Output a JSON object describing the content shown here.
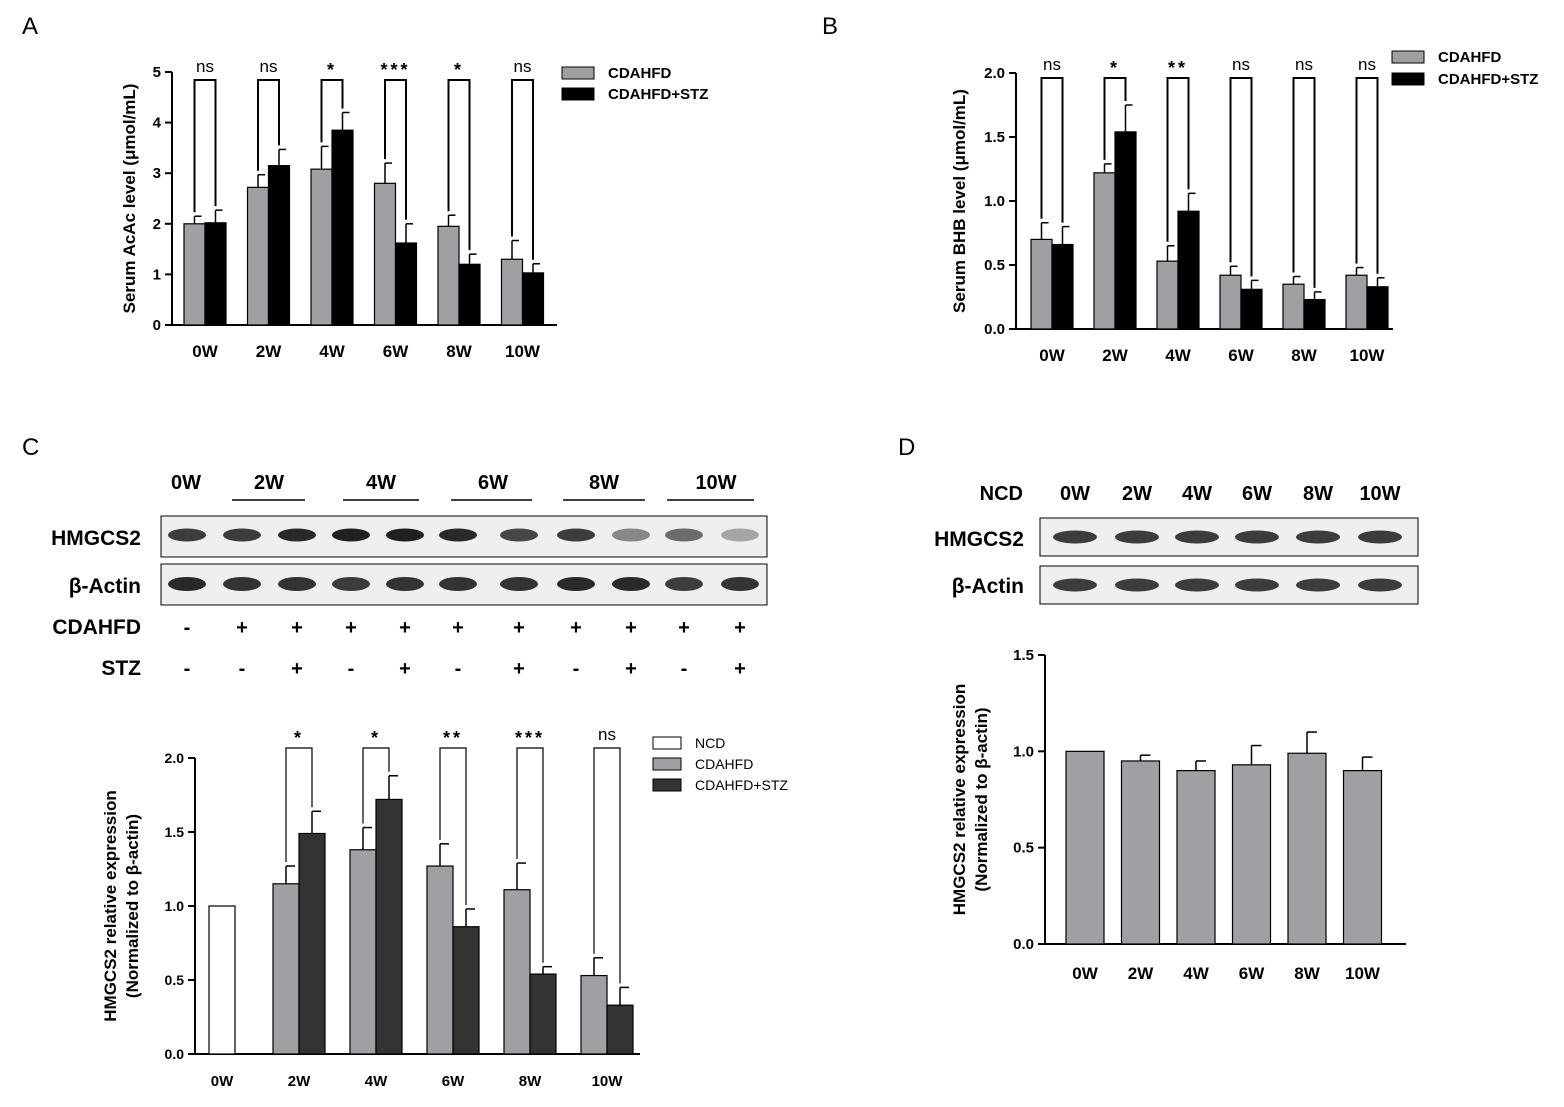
{
  "panels": {
    "A": "A",
    "B": "B",
    "C": "C",
    "D": "D"
  },
  "colors": {
    "cdahfd": "#a0a0a4",
    "cdahfd_stz": "#000000",
    "cdahfd_stz_c": "#333333",
    "ncd": "#ffffff"
  },
  "chart_data": [
    {
      "id": "A",
      "type": "bar",
      "ylabel": "Serum AcAc level (μmol/mL)",
      "categories": [
        "0W",
        "2W",
        "4W",
        "6W",
        "8W",
        "10W"
      ],
      "ylim": [
        0,
        5
      ],
      "yticks": [
        "0",
        "1",
        "2",
        "3",
        "4",
        "5"
      ],
      "series": [
        {
          "name": "CDAHFD",
          "values": [
            2.0,
            2.72,
            3.08,
            2.8,
            1.95,
            1.3
          ],
          "errors": [
            0.15,
            0.25,
            0.45,
            0.4,
            0.22,
            0.37
          ]
        },
        {
          "name": "CDAHFD+STZ",
          "values": [
            2.02,
            3.15,
            3.85,
            1.62,
            1.2,
            1.03
          ],
          "errors": [
            0.25,
            0.32,
            0.35,
            0.38,
            0.2,
            0.18
          ]
        }
      ],
      "significance": [
        "ns",
        "ns",
        "*",
        "***",
        "*",
        "ns"
      ]
    },
    {
      "id": "B",
      "type": "bar",
      "ylabel": "Serum BHB level (μmol/mL)",
      "categories": [
        "0W",
        "2W",
        "4W",
        "6W",
        "8W",
        "10W"
      ],
      "ylim": [
        0,
        2.0
      ],
      "yticks": [
        "0.0",
        "0.5",
        "1.0",
        "1.5",
        "2.0"
      ],
      "series": [
        {
          "name": "CDAHFD",
          "values": [
            0.7,
            1.22,
            0.53,
            0.42,
            0.35,
            0.42
          ],
          "errors": [
            0.13,
            0.07,
            0.12,
            0.07,
            0.06,
            0.06
          ]
        },
        {
          "name": "CDAHFD+STZ",
          "values": [
            0.66,
            1.54,
            0.92,
            0.31,
            0.23,
            0.33
          ],
          "errors": [
            0.14,
            0.21,
            0.14,
            0.07,
            0.06,
            0.07
          ]
        }
      ],
      "significance": [
        "ns",
        "*",
        "**",
        "ns",
        "ns",
        "ns"
      ]
    },
    {
      "id": "C",
      "type": "bar",
      "ylabel": "HMGCS2 relative expression",
      "ylabel2": "(Normalized to β-actin)",
      "categories": [
        "0W",
        "2W",
        "4W",
        "6W",
        "8W",
        "10W"
      ],
      "ylim": [
        0,
        2.0
      ],
      "yticks": [
        "0.0",
        "0.5",
        "1.0",
        "1.5",
        "2.0"
      ],
      "series": [
        {
          "name": "NCD",
          "values": [
            1.0,
            null,
            null,
            null,
            null,
            null
          ],
          "errors": [
            0,
            null,
            null,
            null,
            null,
            null
          ]
        },
        {
          "name": "CDAHFD",
          "values": [
            null,
            1.15,
            1.38,
            1.27,
            1.11,
            0.53
          ],
          "errors": [
            null,
            0.12,
            0.15,
            0.15,
            0.18,
            0.12
          ]
        },
        {
          "name": "CDAHFD+STZ",
          "values": [
            null,
            1.49,
            1.72,
            0.86,
            0.54,
            0.33
          ],
          "errors": [
            null,
            0.15,
            0.16,
            0.12,
            0.05,
            0.12
          ]
        }
      ],
      "significance": [
        "",
        "*",
        "*",
        "**",
        "***",
        "ns"
      ]
    },
    {
      "id": "D",
      "type": "bar",
      "ylabel": "HMGCS2 relative expression",
      "ylabel2": "(Normalized to β-actin)",
      "categories": [
        "0W",
        "2W",
        "4W",
        "6W",
        "8W",
        "10W"
      ],
      "ylim": [
        0,
        1.5
      ],
      "yticks": [
        "0.0",
        "0.5",
        "1.0",
        "1.5"
      ],
      "series": [
        {
          "name": "NCD",
          "values": [
            1.0,
            0.95,
            0.9,
            0.93,
            0.99,
            0.9
          ],
          "errors": [
            0,
            0.03,
            0.05,
            0.1,
            0.11,
            0.07
          ]
        }
      ]
    }
  ],
  "blots": {
    "C": {
      "lanes": [
        "0W",
        "2W",
        "4W",
        "6W",
        "8W",
        "10W"
      ],
      "proteins": [
        "HMGCS2",
        "β-Actin"
      ],
      "rows": [
        {
          "label": "CDAHFD",
          "marks": [
            "-",
            "+",
            "+",
            "+",
            "+",
            "+",
            "+",
            "+",
            "+",
            "+",
            "+"
          ]
        },
        {
          "label": "STZ",
          "marks": [
            "-",
            "-",
            "+",
            "-",
            "+",
            "-",
            "+",
            "-",
            "+",
            "-",
            "+"
          ]
        }
      ],
      "hmgcs2_intensity": [
        0.85,
        0.85,
        0.95,
        1.0,
        1.0,
        0.95,
        0.8,
        0.85,
        0.45,
        0.6,
        0.3
      ],
      "actin_intensity": [
        0.95,
        0.9,
        0.9,
        0.85,
        0.9,
        0.9,
        0.9,
        0.95,
        0.95,
        0.85,
        0.9
      ]
    },
    "D": {
      "group": "NCD",
      "lanes": [
        "0W",
        "2W",
        "4W",
        "6W",
        "8W",
        "10W"
      ],
      "proteins": [
        "HMGCS2",
        "β-Actin"
      ]
    }
  }
}
